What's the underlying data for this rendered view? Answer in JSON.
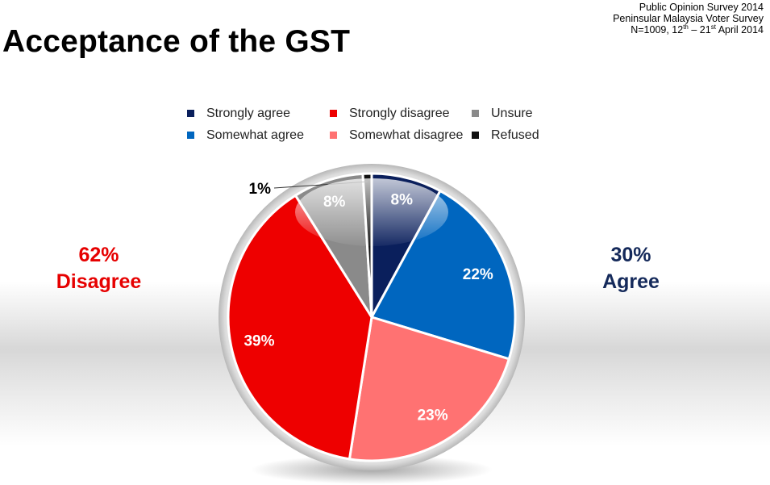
{
  "source": {
    "line1": "Public Opinion Survey 2014",
    "line2": "Peninsular Malaysia Voter Survey",
    "line3_prefix": "N=1009,  12",
    "line3_sup1": "th",
    "line3_mid": " – 21",
    "line3_sup2": "st",
    "line3_suffix": "  April 2014"
  },
  "title": "Acceptance of the GST",
  "summary": {
    "disagree_pct": "62%",
    "disagree_label": "Disagree",
    "agree_pct": "30%",
    "agree_label": "Agree"
  },
  "chart_data": {
    "type": "pie",
    "title": "Acceptance of the GST",
    "legend_placement": "top",
    "slices": [
      {
        "name": "Strongly agree",
        "value": 8,
        "label": "8%",
        "color": "#0a1f5c"
      },
      {
        "name": "Somewhat agree",
        "value": 22,
        "label": "22%",
        "color": "#0066bf"
      },
      {
        "name": "Somewhat disagree",
        "value": 23,
        "label": "23%",
        "color": "#ff7272"
      },
      {
        "name": "Strongly disagree",
        "value": 39,
        "label": "39%",
        "color": "#ee0000"
      },
      {
        "name": "Unsure",
        "value": 8,
        "label": "8%",
        "color": "#8a8a8a"
      },
      {
        "name": "Refused",
        "value": 1,
        "label": "1%",
        "color": "#111111"
      }
    ],
    "legend_order": [
      "Strongly agree",
      "Strongly disagree",
      "Unsure",
      "Somewhat agree",
      "Somewhat disagree",
      "Refused"
    ]
  }
}
